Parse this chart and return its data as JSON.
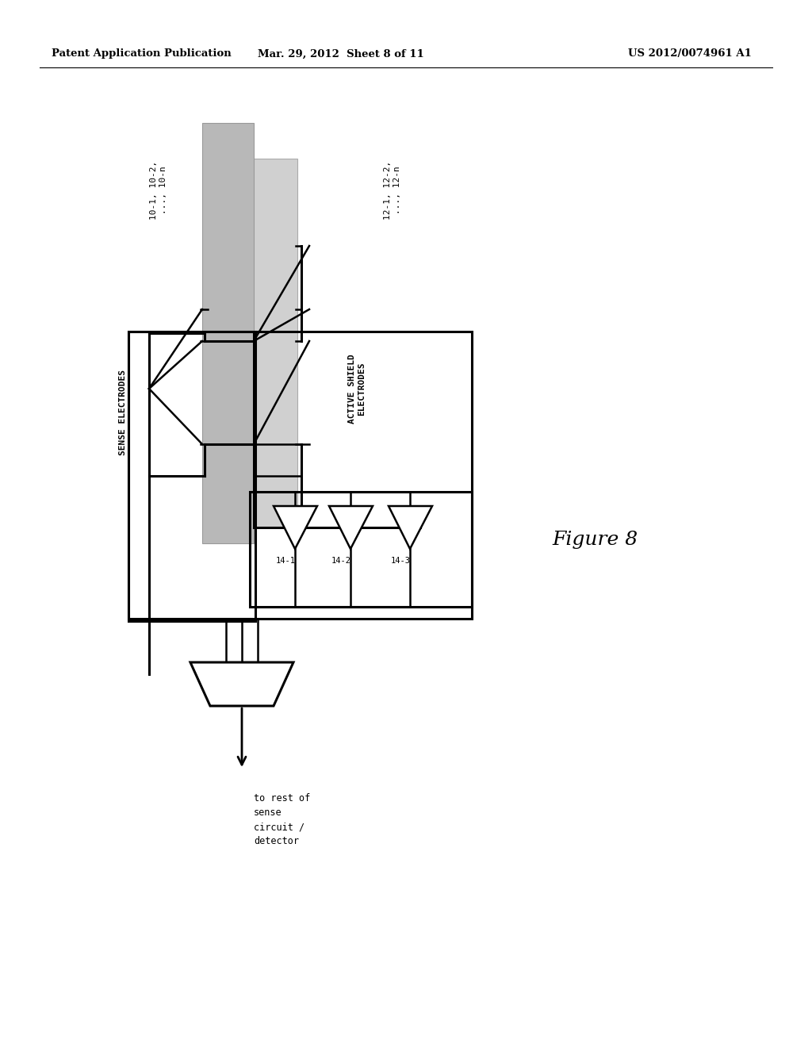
{
  "header_left": "Patent Application Publication",
  "header_mid": "Mar. 29, 2012  Sheet 8 of 11",
  "header_right": "US 2012/0074961 A1",
  "figure_label": "Figure 8",
  "sense_label": "SENSE ELECTRODES",
  "sense_numbers": "10-1, 10-2,\n..., 10-n",
  "shield_label": "ACTIVE SHIELD\nELECTRODES",
  "shield_numbers": "12-1, 12-2,\n..., 12-n",
  "amp_labels": [
    "14-1",
    "14-2",
    "14-3"
  ],
  "bottom_label": "to rest of\nsense\ncircuit /\ndetector",
  "bg_color": "#ffffff",
  "line_color": "#000000",
  "gray_light": "#cccccc",
  "gray_mid": "#b0b0b0"
}
